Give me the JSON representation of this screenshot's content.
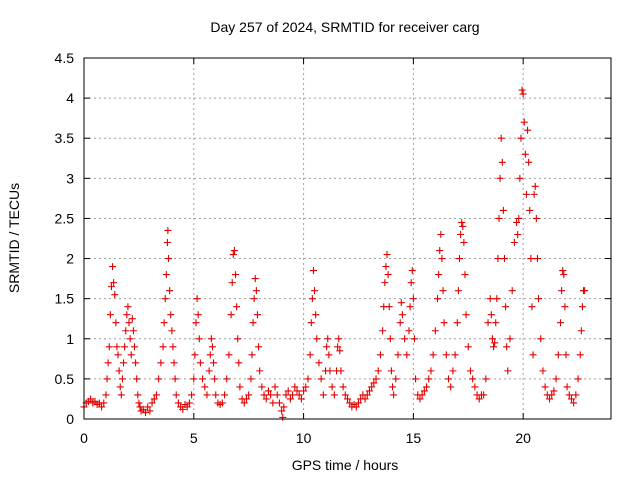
{
  "chart_data": {
    "type": "scatter",
    "title": "Day 257 of 2024, SRMTID for receiver carg",
    "xlabel": "GPS time / hours",
    "ylabel": "SRMTID / TECUs",
    "xlim": [
      0,
      24
    ],
    "ylim": [
      0,
      4.5
    ],
    "x_ticks": [
      0,
      5,
      10,
      15,
      20
    ],
    "x_tick_labels": [
      "0",
      "5",
      "10",
      "15",
      "20"
    ],
    "y_ticks": [
      0,
      0.5,
      1,
      1.5,
      2,
      2.5,
      3,
      3.5,
      4,
      4.5
    ],
    "y_tick_labels": [
      "0",
      "0.5",
      "1",
      "1.5",
      "2",
      "2.5",
      "3",
      "3.5",
      "4",
      "4.5"
    ],
    "grid": true,
    "marker": "plus",
    "series": [
      {
        "name": "SRMTID",
        "color": "#e00000",
        "points": [
          [
            0.0,
            0.15
          ],
          [
            0.1,
            0.2
          ],
          [
            0.2,
            0.22
          ],
          [
            0.3,
            0.25
          ],
          [
            0.4,
            0.2
          ],
          [
            0.5,
            0.22
          ],
          [
            0.6,
            0.18
          ],
          [
            0.7,
            0.2
          ],
          [
            0.8,
            0.15
          ],
          [
            0.9,
            0.2
          ],
          [
            1.0,
            0.3
          ],
          [
            1.05,
            0.5
          ],
          [
            1.1,
            0.7
          ],
          [
            1.15,
            0.9
          ],
          [
            1.2,
            1.3
          ],
          [
            1.25,
            1.65
          ],
          [
            1.3,
            1.9
          ],
          [
            1.35,
            1.7
          ],
          [
            1.4,
            1.55
          ],
          [
            1.45,
            1.2
          ],
          [
            1.5,
            0.9
          ],
          [
            1.55,
            0.8
          ],
          [
            1.6,
            0.6
          ],
          [
            1.65,
            0.4
          ],
          [
            1.7,
            0.3
          ],
          [
            1.75,
            0.5
          ],
          [
            1.8,
            0.7
          ],
          [
            1.85,
            0.9
          ],
          [
            1.9,
            1.1
          ],
          [
            1.95,
            1.3
          ],
          [
            2.0,
            1.4
          ],
          [
            2.05,
            1.2
          ],
          [
            2.1,
            1.0
          ],
          [
            2.15,
            0.8
          ],
          [
            2.2,
            1.25
          ],
          [
            2.25,
            1.1
          ],
          [
            2.3,
            0.9
          ],
          [
            2.35,
            0.7
          ],
          [
            2.4,
            0.5
          ],
          [
            2.45,
            0.3
          ],
          [
            2.5,
            0.2
          ],
          [
            2.55,
            0.15
          ],
          [
            2.6,
            0.1
          ],
          [
            2.7,
            0.12
          ],
          [
            2.8,
            0.08
          ],
          [
            2.9,
            0.15
          ],
          [
            3.0,
            0.1
          ],
          [
            3.1,
            0.2
          ],
          [
            3.2,
            0.25
          ],
          [
            3.3,
            0.3
          ],
          [
            3.4,
            0.5
          ],
          [
            3.5,
            0.7
          ],
          [
            3.6,
            0.9
          ],
          [
            3.65,
            1.2
          ],
          [
            3.7,
            1.5
          ],
          [
            3.75,
            1.8
          ],
          [
            3.8,
            2.2
          ],
          [
            3.82,
            2.35
          ],
          [
            3.85,
            2.0
          ],
          [
            3.9,
            1.6
          ],
          [
            3.95,
            1.3
          ],
          [
            4.0,
            1.1
          ],
          [
            4.05,
            0.9
          ],
          [
            4.1,
            0.7
          ],
          [
            4.15,
            0.5
          ],
          [
            4.2,
            0.3
          ],
          [
            4.3,
            0.2
          ],
          [
            4.4,
            0.15
          ],
          [
            4.5,
            0.12
          ],
          [
            4.6,
            0.18
          ],
          [
            4.7,
            0.15
          ],
          [
            4.8,
            0.2
          ],
          [
            4.9,
            0.3
          ],
          [
            5.0,
            0.5
          ],
          [
            5.05,
            0.8
          ],
          [
            5.1,
            1.2
          ],
          [
            5.15,
            1.5
          ],
          [
            5.2,
            1.3
          ],
          [
            5.25,
            1.0
          ],
          [
            5.3,
            0.7
          ],
          [
            5.4,
            0.5
          ],
          [
            5.5,
            0.4
          ],
          [
            5.6,
            0.3
          ],
          [
            5.7,
            0.6
          ],
          [
            5.75,
            0.8
          ],
          [
            5.8,
            1.0
          ],
          [
            5.85,
            0.9
          ],
          [
            5.9,
            0.7
          ],
          [
            5.95,
            0.5
          ],
          [
            6.0,
            0.3
          ],
          [
            6.1,
            0.2
          ],
          [
            6.2,
            0.18
          ],
          [
            6.3,
            0.2
          ],
          [
            6.4,
            0.3
          ],
          [
            6.5,
            0.5
          ],
          [
            6.6,
            0.8
          ],
          [
            6.7,
            1.3
          ],
          [
            6.75,
            1.7
          ],
          [
            6.8,
            2.05
          ],
          [
            6.85,
            2.1
          ],
          [
            6.9,
            1.8
          ],
          [
            6.95,
            1.4
          ],
          [
            7.0,
            1.0
          ],
          [
            7.05,
            0.7
          ],
          [
            7.1,
            0.4
          ],
          [
            7.2,
            0.25
          ],
          [
            7.3,
            0.2
          ],
          [
            7.4,
            0.25
          ],
          [
            7.5,
            0.3
          ],
          [
            7.6,
            0.5
          ],
          [
            7.65,
            0.8
          ],
          [
            7.7,
            1.2
          ],
          [
            7.75,
            1.5
          ],
          [
            7.8,
            1.75
          ],
          [
            7.85,
            1.6
          ],
          [
            7.9,
            1.3
          ],
          [
            7.95,
            0.9
          ],
          [
            8.0,
            0.6
          ],
          [
            8.1,
            0.4
          ],
          [
            8.2,
            0.3
          ],
          [
            8.3,
            0.25
          ],
          [
            8.4,
            0.35
          ],
          [
            8.5,
            0.3
          ],
          [
            8.6,
            0.2
          ],
          [
            8.7,
            0.4
          ],
          [
            8.8,
            0.3
          ],
          [
            8.9,
            0.2
          ],
          [
            9.0,
            0.1
          ],
          [
            9.05,
            0.02
          ],
          [
            9.1,
            0.15
          ],
          [
            9.2,
            0.3
          ],
          [
            9.3,
            0.35
          ],
          [
            9.4,
            0.25
          ],
          [
            9.5,
            0.3
          ],
          [
            9.6,
            0.4
          ],
          [
            9.7,
            0.35
          ],
          [
            9.8,
            0.3
          ],
          [
            9.9,
            0.25
          ],
          [
            10.0,
            0.35
          ],
          [
            10.1,
            0.4
          ],
          [
            10.2,
            0.5
          ],
          [
            10.3,
            0.8
          ],
          [
            10.35,
            1.2
          ],
          [
            10.4,
            1.5
          ],
          [
            10.45,
            1.85
          ],
          [
            10.5,
            1.6
          ],
          [
            10.55,
            1.3
          ],
          [
            10.6,
            1.0
          ],
          [
            10.7,
            0.7
          ],
          [
            10.8,
            0.5
          ],
          [
            10.9,
            0.3
          ],
          [
            11.0,
            0.6
          ],
          [
            11.05,
            0.9
          ],
          [
            11.1,
            1.0
          ],
          [
            11.15,
            0.8
          ],
          [
            11.2,
            0.6
          ],
          [
            11.3,
            0.4
          ],
          [
            11.4,
            0.3
          ],
          [
            11.5,
            0.6
          ],
          [
            11.55,
            0.9
          ],
          [
            11.6,
            1.0
          ],
          [
            11.65,
            0.85
          ],
          [
            11.7,
            0.6
          ],
          [
            11.8,
            0.4
          ],
          [
            11.9,
            0.3
          ],
          [
            12.0,
            0.25
          ],
          [
            12.1,
            0.2
          ],
          [
            12.2,
            0.15
          ],
          [
            12.3,
            0.18
          ],
          [
            12.4,
            0.15
          ],
          [
            12.5,
            0.2
          ],
          [
            12.6,
            0.25
          ],
          [
            12.7,
            0.3
          ],
          [
            12.8,
            0.25
          ],
          [
            12.9,
            0.3
          ],
          [
            13.0,
            0.35
          ],
          [
            13.1,
            0.4
          ],
          [
            13.2,
            0.45
          ],
          [
            13.3,
            0.5
          ],
          [
            13.4,
            0.6
          ],
          [
            13.5,
            0.8
          ],
          [
            13.6,
            1.1
          ],
          [
            13.65,
            1.4
          ],
          [
            13.7,
            1.7
          ],
          [
            13.75,
            1.9
          ],
          [
            13.8,
            2.05
          ],
          [
            13.85,
            1.8
          ],
          [
            13.9,
            1.4
          ],
          [
            13.95,
            1.0
          ],
          [
            14.0,
            0.6
          ],
          [
            14.05,
            0.4
          ],
          [
            14.1,
            0.3
          ],
          [
            14.2,
            0.5
          ],
          [
            14.3,
            0.8
          ],
          [
            14.4,
            1.2
          ],
          [
            14.45,
            1.45
          ],
          [
            14.5,
            1.3
          ],
          [
            14.6,
            1.0
          ],
          [
            14.7,
            0.8
          ],
          [
            14.8,
            1.1
          ],
          [
            14.85,
            1.4
          ],
          [
            14.9,
            1.7
          ],
          [
            14.95,
            1.85
          ],
          [
            15.0,
            1.5
          ],
          [
            15.05,
            1.0
          ],
          [
            15.1,
            0.5
          ],
          [
            15.2,
            0.3
          ],
          [
            15.3,
            0.25
          ],
          [
            15.4,
            0.3
          ],
          [
            15.5,
            0.35
          ],
          [
            15.6,
            0.4
          ],
          [
            15.7,
            0.5
          ],
          [
            15.8,
            0.6
          ],
          [
            15.9,
            0.8
          ],
          [
            16.0,
            1.1
          ],
          [
            16.1,
            1.5
          ],
          [
            16.15,
            1.8
          ],
          [
            16.2,
            2.1
          ],
          [
            16.25,
            2.3
          ],
          [
            16.3,
            2.0
          ],
          [
            16.35,
            1.6
          ],
          [
            16.4,
            1.2
          ],
          [
            16.5,
            0.8
          ],
          [
            16.6,
            0.5
          ],
          [
            16.7,
            0.4
          ],
          [
            16.8,
            0.6
          ],
          [
            16.9,
            0.8
          ],
          [
            17.0,
            1.2
          ],
          [
            17.05,
            1.6
          ],
          [
            17.1,
            2.0
          ],
          [
            17.15,
            2.3
          ],
          [
            17.2,
            2.45
          ],
          [
            17.25,
            2.4
          ],
          [
            17.3,
            2.2
          ],
          [
            17.35,
            1.8
          ],
          [
            17.4,
            1.3
          ],
          [
            17.5,
            0.9
          ],
          [
            17.6,
            0.6
          ],
          [
            17.7,
            0.5
          ],
          [
            17.8,
            0.4
          ],
          [
            17.9,
            0.3
          ],
          [
            18.0,
            0.25
          ],
          [
            18.1,
            0.3
          ],
          [
            18.2,
            0.3
          ],
          [
            18.3,
            0.5
          ],
          [
            18.4,
            1.2
          ],
          [
            18.5,
            1.5
          ],
          [
            18.55,
            1.3
          ],
          [
            18.6,
            1.0
          ],
          [
            18.65,
            0.9
          ],
          [
            18.7,
            0.95
          ],
          [
            18.75,
            1.2
          ],
          [
            18.8,
            1.5
          ],
          [
            18.85,
            2.0
          ],
          [
            18.9,
            2.5
          ],
          [
            18.95,
            3.0
          ],
          [
            19.0,
            3.5
          ],
          [
            19.05,
            3.2
          ],
          [
            19.1,
            2.6
          ],
          [
            19.15,
            2.0
          ],
          [
            19.2,
            1.4
          ],
          [
            19.25,
            0.9
          ],
          [
            19.3,
            0.6
          ],
          [
            19.4,
            1.0
          ],
          [
            19.5,
            1.6
          ],
          [
            19.6,
            2.2
          ],
          [
            19.7,
            2.45
          ],
          [
            19.75,
            2.3
          ],
          [
            19.8,
            2.5
          ],
          [
            19.85,
            3.0
          ],
          [
            19.9,
            3.5
          ],
          [
            19.95,
            4.1
          ],
          [
            20.0,
            4.05
          ],
          [
            20.05,
            3.7
          ],
          [
            20.1,
            3.3
          ],
          [
            20.15,
            2.8
          ],
          [
            20.2,
            3.6
          ],
          [
            20.25,
            3.2
          ],
          [
            20.3,
            2.6
          ],
          [
            20.35,
            2.0
          ],
          [
            20.4,
            1.4
          ],
          [
            20.45,
            0.8
          ],
          [
            20.5,
            2.8
          ],
          [
            20.55,
            2.9
          ],
          [
            20.6,
            2.5
          ],
          [
            20.65,
            2.0
          ],
          [
            20.7,
            1.5
          ],
          [
            20.8,
            1.0
          ],
          [
            20.9,
            0.6
          ],
          [
            21.0,
            0.4
          ],
          [
            21.1,
            0.3
          ],
          [
            21.2,
            0.25
          ],
          [
            21.3,
            0.3
          ],
          [
            21.4,
            0.35
          ],
          [
            21.5,
            0.5
          ],
          [
            21.6,
            0.8
          ],
          [
            21.7,
            1.2
          ],
          [
            21.75,
            1.6
          ],
          [
            21.8,
            1.85
          ],
          [
            21.85,
            1.8
          ],
          [
            21.9,
            1.4
          ],
          [
            21.95,
            0.8
          ],
          [
            22.0,
            0.4
          ],
          [
            22.1,
            0.3
          ],
          [
            22.2,
            0.25
          ],
          [
            22.3,
            0.2
          ],
          [
            22.4,
            0.3
          ],
          [
            22.5,
            0.5
          ],
          [
            22.6,
            0.8
          ],
          [
            22.65,
            1.1
          ],
          [
            22.7,
            1.4
          ],
          [
            22.75,
            1.6
          ],
          [
            22.8,
            1.6
          ]
        ]
      }
    ]
  }
}
